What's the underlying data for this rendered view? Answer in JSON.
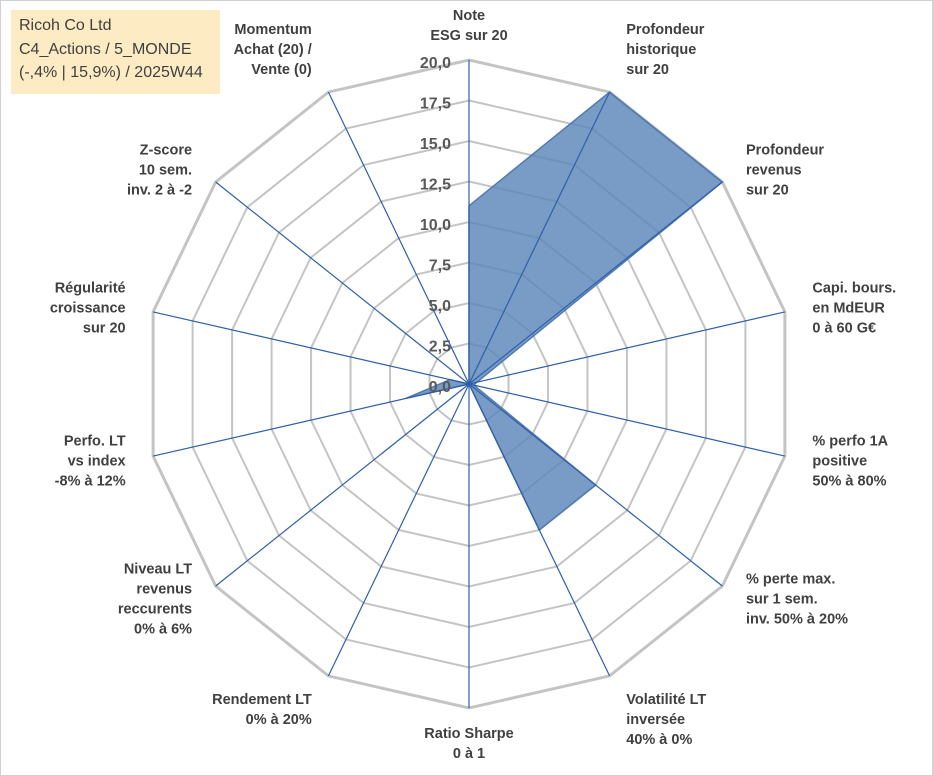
{
  "info": {
    "lines": [
      "Ricoh Co Ltd",
      "C4_Actions / 5_MONDE",
      "(-,4% | 15,9%) / 2025W44"
    ]
  },
  "colors": {
    "series_fill": "#5b86b9",
    "series_stroke": "#4f7bb1",
    "gridline": "#c4c4c4",
    "spoke": "#2f5fa8",
    "info_bg": "#fdebc4"
  },
  "chart_data": {
    "type": "radar",
    "rmin": 0,
    "rmax": 20,
    "ticks": [
      "0,0",
      "2,5",
      "5,0",
      "7,5",
      "10,0",
      "12,5",
      "15,0",
      "17,5",
      "20,0"
    ],
    "categories": [
      [
        "Note",
        "ESG sur 20"
      ],
      [
        "Profondeur",
        "historique",
        "sur 20"
      ],
      [
        "Profondeur",
        "revenus",
        "sur 20"
      ],
      [
        "Capi. bours.",
        "en MdEUR",
        "0 à 60 G€"
      ],
      [
        "% perfo 1A",
        "positive",
        "50% à 80%"
      ],
      [
        "% perte max.",
        "sur 1 sem.",
        "inv. 50% à 20%"
      ],
      [
        "Volatilité LT",
        "inversée",
        "40% à 0%"
      ],
      [
        "Ratio Sharpe",
        "0 à 1"
      ],
      [
        "Rendement LT",
        "0% à 20%"
      ],
      [
        "Niveau LT",
        "revenus",
        "reccurents",
        "0% à 6%"
      ],
      [
        "Perfo. LT",
        "vs index",
        "-8% à 12%"
      ],
      [
        "Régularité",
        "croissance",
        "sur 20"
      ],
      [
        "Z-score",
        "10 sem.",
        "inv. 2 à -2"
      ],
      [
        "Momentum",
        "Achat (20) /",
        "Vente (0)"
      ]
    ],
    "values": [
      11,
      20,
      20,
      0.5,
      0.3,
      10,
      10,
      0,
      0,
      0,
      4,
      1.2,
      0,
      0
    ],
    "grid": true,
    "legend": "none"
  }
}
